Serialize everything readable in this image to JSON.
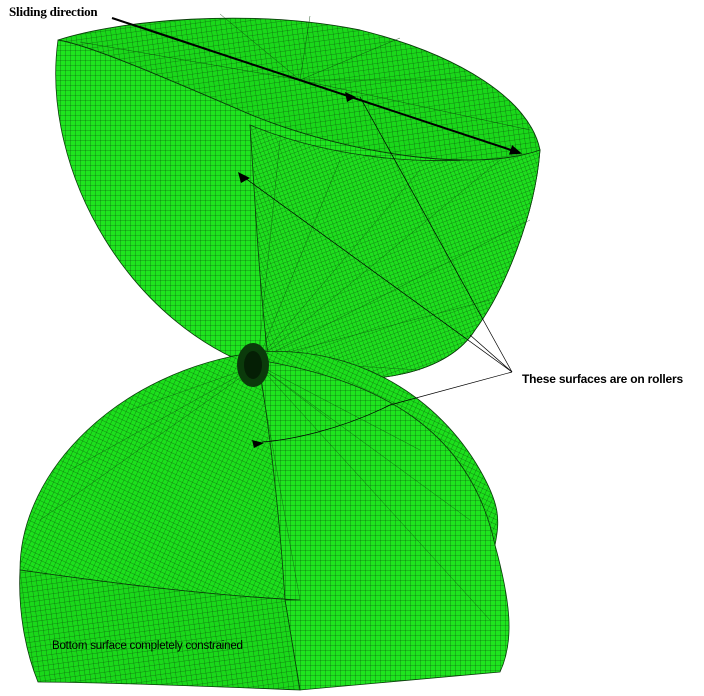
{
  "labels": {
    "sliding_direction": "Sliding direction",
    "rollers": "These surfaces are on rollers",
    "bottom_constraint": "Bottom surface completely constrained"
  },
  "colors": {
    "mesh_fill": "#1fe51f",
    "mesh_fill_dark": "#10b810",
    "mesh_line": "#0a3d0a",
    "annotation": "#000000",
    "background": "#ffffff"
  }
}
